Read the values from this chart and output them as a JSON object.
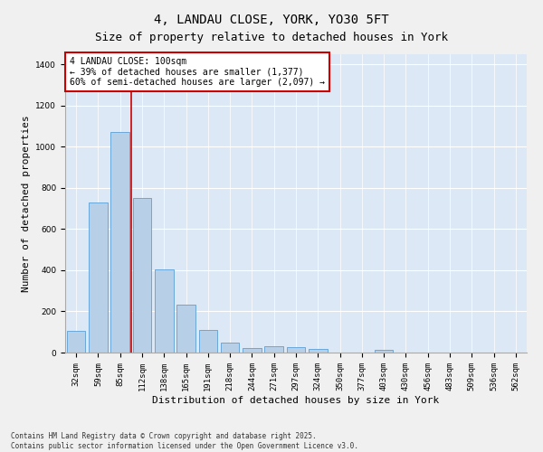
{
  "title1": "4, LANDAU CLOSE, YORK, YO30 5FT",
  "title2": "Size of property relative to detached houses in York",
  "xlabel": "Distribution of detached houses by size in York",
  "ylabel": "Number of detached properties",
  "categories": [
    "32sqm",
    "59sqm",
    "85sqm",
    "112sqm",
    "138sqm",
    "165sqm",
    "191sqm",
    "218sqm",
    "244sqm",
    "271sqm",
    "297sqm",
    "324sqm",
    "350sqm",
    "377sqm",
    "403sqm",
    "430sqm",
    "456sqm",
    "483sqm",
    "509sqm",
    "536sqm",
    "562sqm"
  ],
  "values": [
    107,
    730,
    1070,
    750,
    405,
    235,
    110,
    50,
    20,
    30,
    25,
    18,
    0,
    0,
    12,
    0,
    0,
    0,
    0,
    0,
    0
  ],
  "bar_color": "#b8cfe8",
  "bar_edge_color": "#5a9fd4",
  "vline_color": "#cc0000",
  "vline_x": 2.5,
  "annotation_text": "4 LANDAU CLOSE: 100sqm\n← 39% of detached houses are smaller (1,377)\n60% of semi-detached houses are larger (2,097) →",
  "annotation_box_color": "#cc0000",
  "ylim": [
    0,
    1450
  ],
  "yticks": [
    0,
    200,
    400,
    600,
    800,
    1000,
    1200,
    1400
  ],
  "bg_color": "#dce8f5",
  "fig_bg_color": "#f0f0f0",
  "footer": "Contains HM Land Registry data © Crown copyright and database right 2025.\nContains public sector information licensed under the Open Government Licence v3.0.",
  "title1_fontsize": 10,
  "title2_fontsize": 9,
  "xlabel_fontsize": 8,
  "ylabel_fontsize": 8,
  "tick_fontsize": 6.5,
  "annotation_fontsize": 7,
  "footer_fontsize": 5.5
}
